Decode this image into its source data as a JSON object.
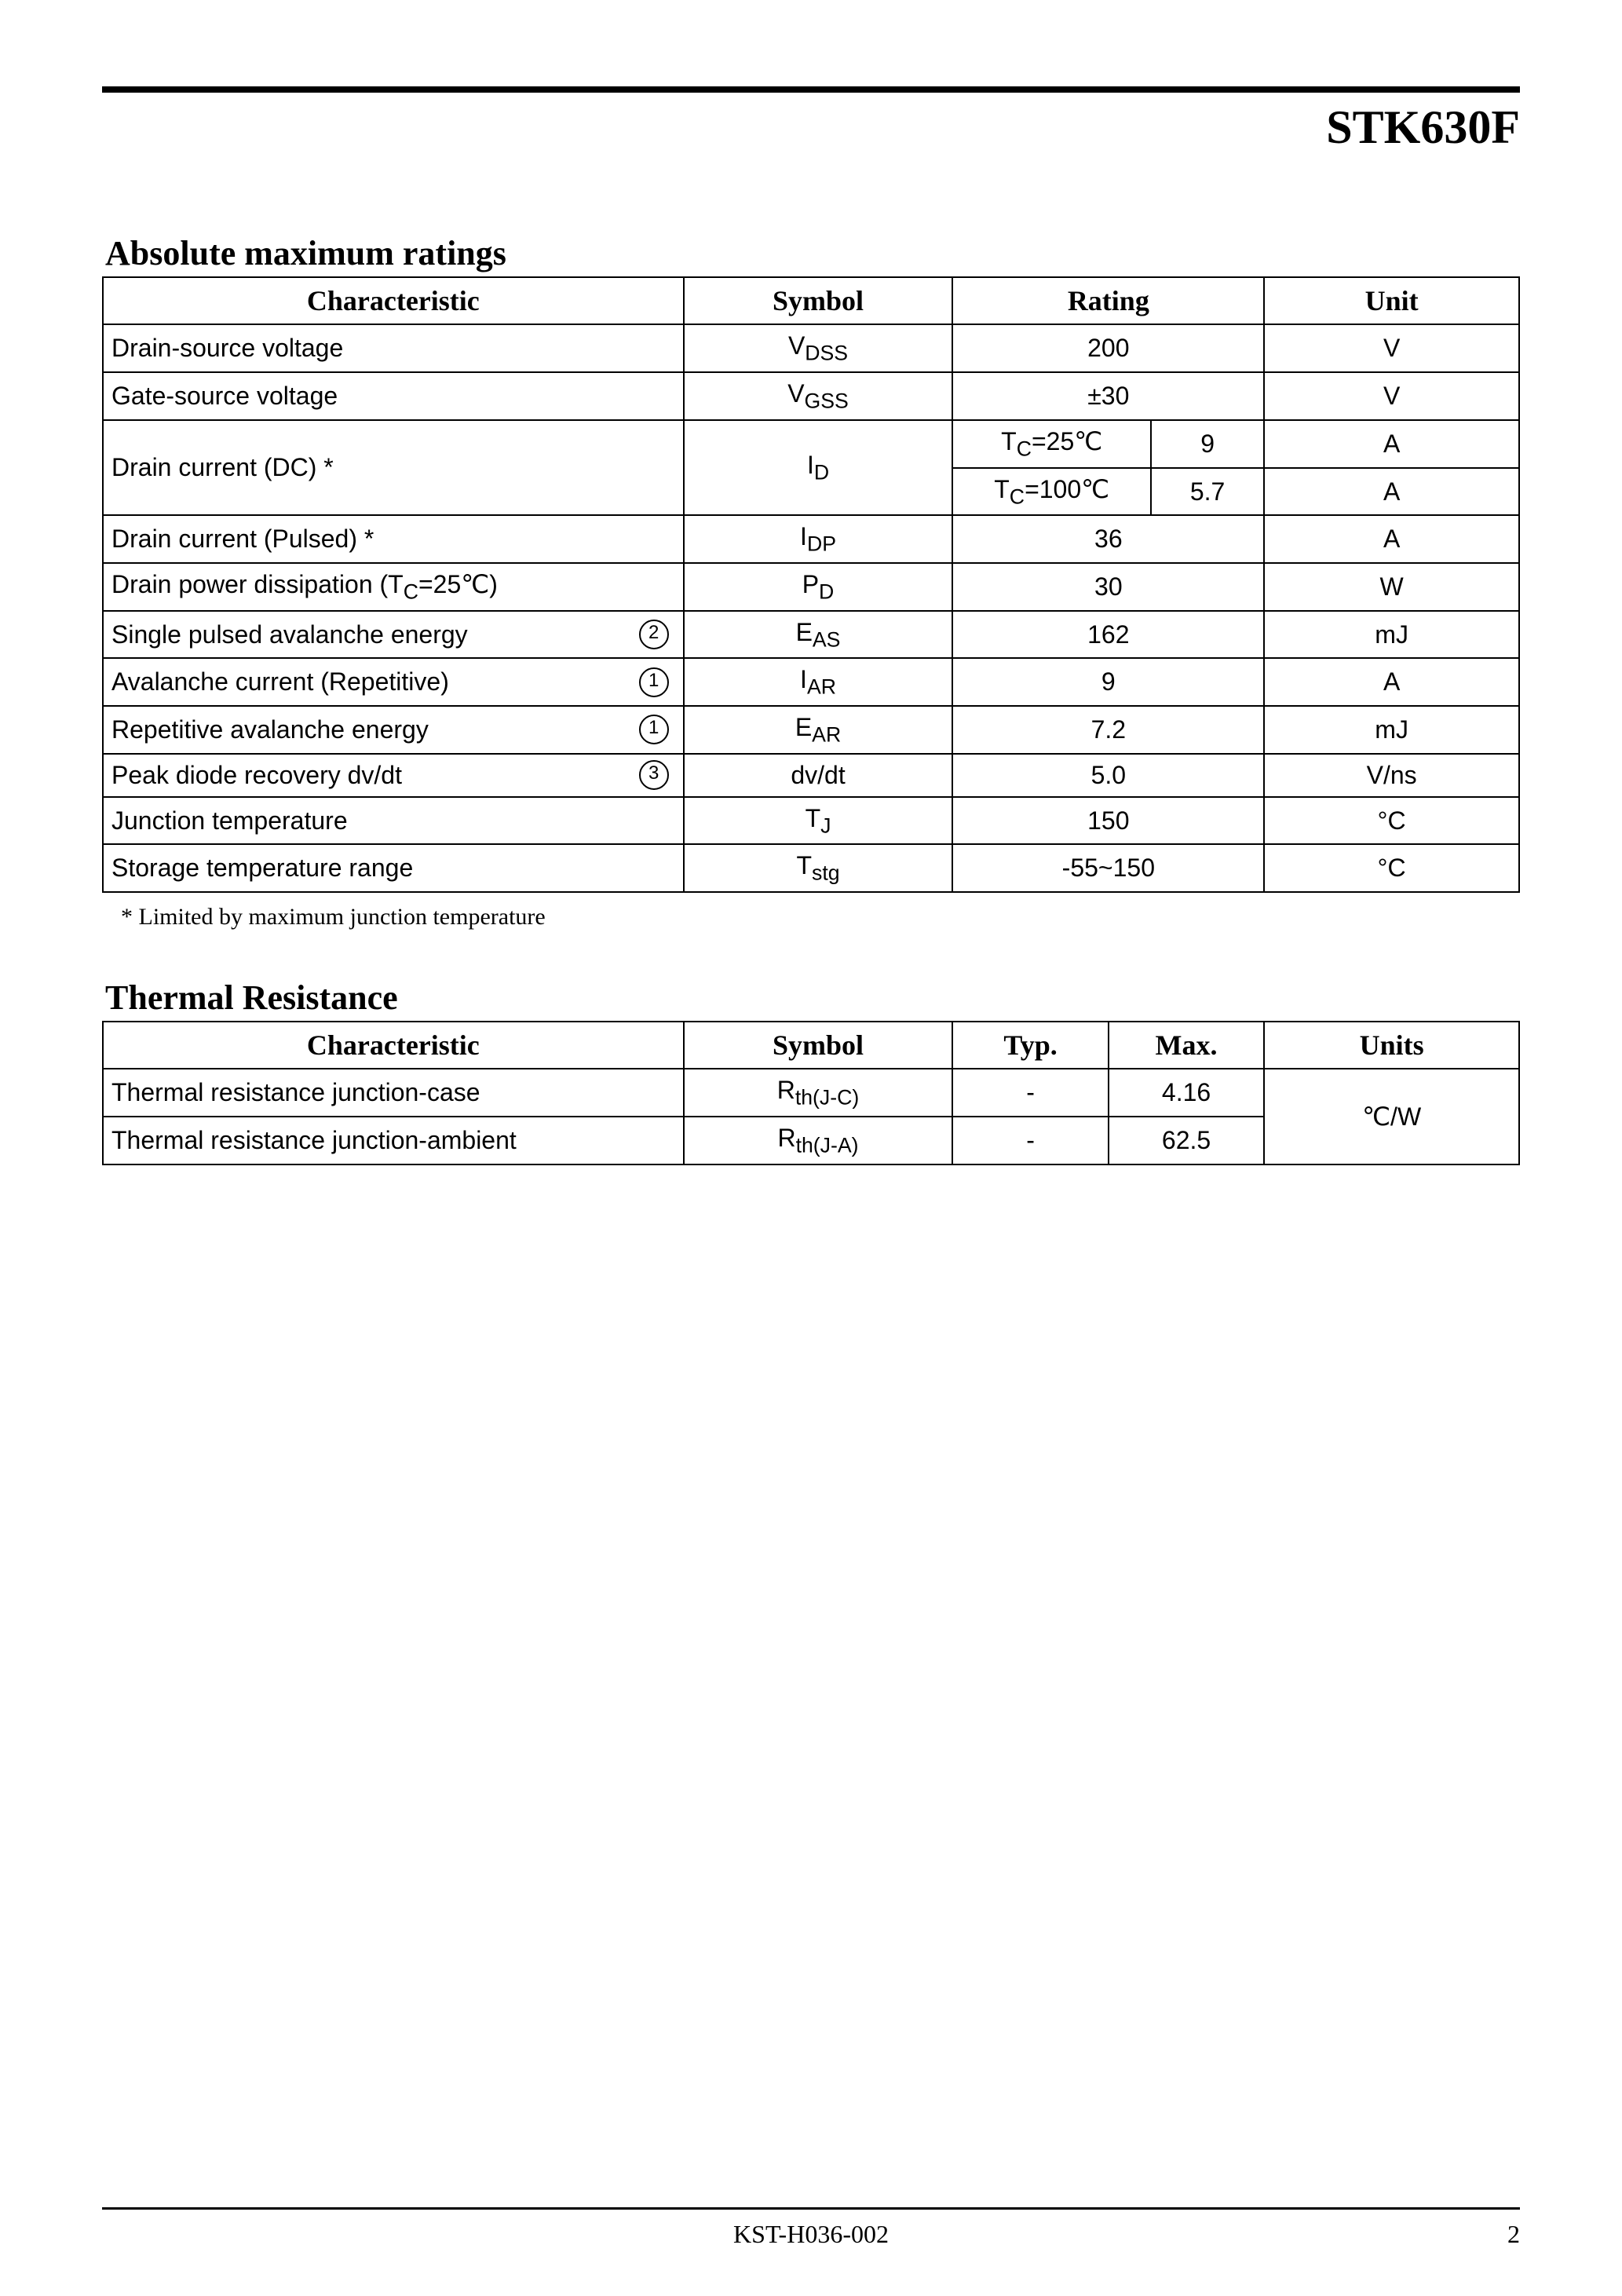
{
  "part_number": "STK630F",
  "sections": {
    "abs_max": {
      "title": "Absolute maximum ratings",
      "columns": [
        "Characteristic",
        "Symbol",
        "Rating",
        "Unit"
      ],
      "col_widths_pct": [
        41,
        19,
        22,
        18
      ],
      "rating_subcol_widths_pct": [
        14,
        8
      ],
      "rows": [
        {
          "char": "Drain-source voltage",
          "symbol_html": "V<sub>DSS</sub>",
          "rating": "200",
          "unit": "V"
        },
        {
          "char": "Gate-source voltage",
          "symbol_html": "V<sub>GSS</sub>",
          "rating": "±30",
          "unit": "V"
        },
        {
          "char": "Drain current (DC) *",
          "symbol_html": "I<sub>D</sub>",
          "rowspan": 2,
          "sub_rows": [
            {
              "cond_html": "T<sub>C</sub>=25℃",
              "val": "9",
              "unit": "A"
            },
            {
              "cond_html": "T<sub>C</sub>=100℃",
              "val": "5.7",
              "unit": "A"
            }
          ]
        },
        {
          "char": "Drain current (Pulsed) *",
          "symbol_html": "I<sub>DP</sub>",
          "rating": "36",
          "unit": "A"
        },
        {
          "char_html": "Drain power dissipation (T<sub>C</sub>=25℃)",
          "symbol_html": "P<sub>D</sub>",
          "rating": "30",
          "unit": "W"
        },
        {
          "char": "Single pulsed avalanche energy",
          "note": "2",
          "symbol_html": "E<sub>AS</sub>",
          "rating": "162",
          "unit": "mJ"
        },
        {
          "char": "Avalanche current (Repetitive)",
          "note": "1",
          "symbol_html": "I<sub>AR</sub>",
          "rating": "9",
          "unit": "A"
        },
        {
          "char": "Repetitive avalanche energy",
          "note": "1",
          "symbol_html": "E<sub>AR</sub>",
          "rating": "7.2",
          "unit": "mJ"
        },
        {
          "char": "Peak diode recovery dv/dt",
          "note": "3",
          "symbol_html": "dv/dt",
          "rating": "5.0",
          "unit": "V/ns"
        },
        {
          "char": "Junction temperature",
          "symbol_html": "T<sub>J</sub>",
          "rating": "150",
          "unit": "°C"
        },
        {
          "char": "Storage temperature range",
          "symbol_html": "T<sub>stg</sub>",
          "rating": "-55~150",
          "unit": "°C"
        }
      ],
      "footnote": "* Limited by maximum junction temperature"
    },
    "thermal": {
      "title": "Thermal Resistance",
      "columns": [
        "Characteristic",
        "Symbol",
        "Typ.",
        "Max.",
        "Units"
      ],
      "col_widths_pct": [
        41,
        19,
        11,
        11,
        18
      ],
      "rows": [
        {
          "char": "Thermal resistance junction-case",
          "symbol_html": "R<sub>th(J-C)</sub>",
          "typ": "-",
          "max": "4.16"
        },
        {
          "char": "Thermal resistance junction-ambient",
          "symbol_html": "R<sub>th(J-A)</sub>",
          "typ": "-",
          "max": "62.5"
        }
      ],
      "unit": "℃/W"
    }
  },
  "footer": {
    "doc_code": "KST-H036-002",
    "page": "2"
  },
  "colors": {
    "text": "#000000",
    "background": "#ffffff",
    "border": "#000000"
  },
  "typography": {
    "part_title_pt": 45,
    "section_title_pt": 33,
    "table_cell_pt": 24,
    "table_header_pt": 27,
    "footnote_pt": 22,
    "footer_pt": 24,
    "body_font": "Verdana",
    "title_font": "Times New Roman"
  }
}
